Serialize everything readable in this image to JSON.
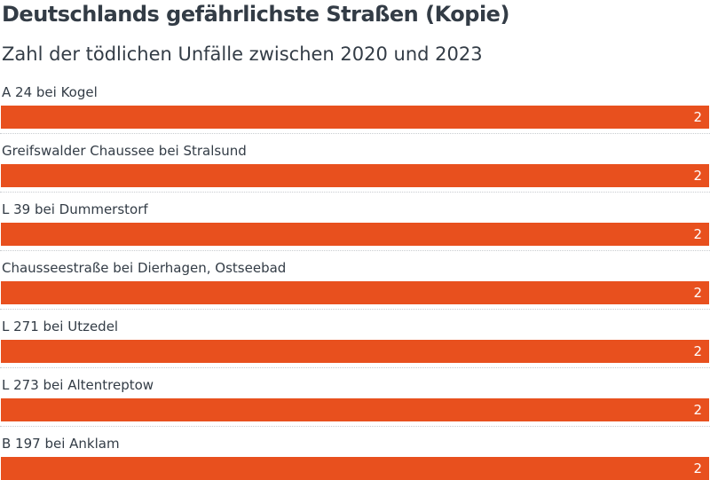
{
  "chart_data": {
    "type": "bar",
    "orientation": "horizontal",
    "title": "Deutschlands gefährlichste Straßen (Kopie)",
    "subtitle": "Zahl der tödlichen Unfälle zwischen 2020 und 2023",
    "categories": [
      "A 24 bei Kogel",
      "Greifswalder Chaussee bei Stralsund",
      "L 39 bei Dummerstorf",
      "Chausseestraße bei Dierhagen, Ostseebad",
      "L 271 bei Utzedel",
      "L 273 bei Altentreptow",
      "B 197 bei Anklam"
    ],
    "values": [
      2,
      2,
      2,
      2,
      2,
      2,
      2
    ],
    "xlim": [
      0,
      2
    ],
    "bar_color": "#e8501e",
    "value_label_color": "#ffffff",
    "grid": false
  }
}
